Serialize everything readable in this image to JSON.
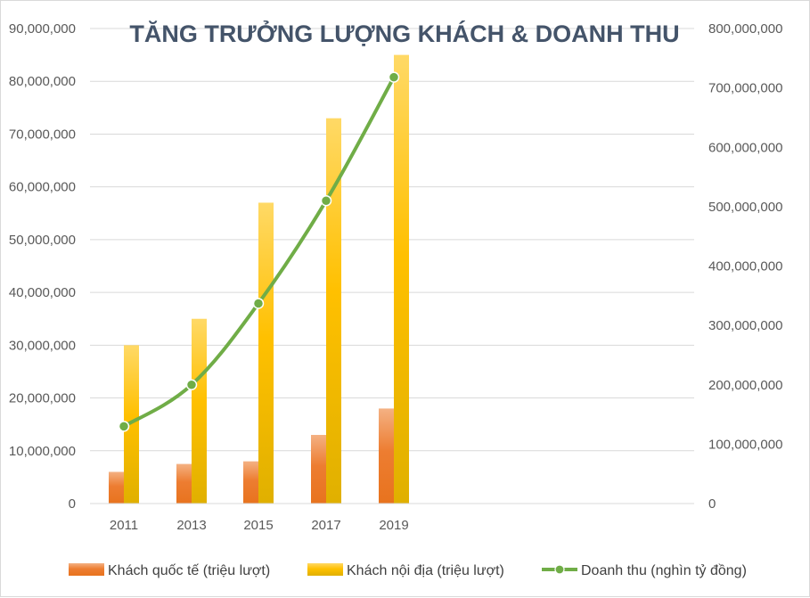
{
  "chart_data": {
    "type": "bar",
    "title": "TĂNG TRƯỞNG LƯỢNG KHÁCH & DOANH THU",
    "xlabel": "",
    "ylabel": "",
    "categories": [
      "2011",
      "2013",
      "2015",
      "2017",
      "2019"
    ],
    "y_left": {
      "min": 0,
      "max": 90000000,
      "step": 10000000,
      "tick_labels": [
        "0",
        "10,000,000",
        "20,000,000",
        "30,000,000",
        "40,000,000",
        "50,000,000",
        "60,000,000",
        "70,000,000",
        "80,000,000",
        "90,000,000"
      ]
    },
    "y_right": {
      "min": 0,
      "max": 800000000,
      "step": 100000000,
      "tick_labels": [
        "0",
        "100,000,000",
        "200,000,000",
        "300,000,000",
        "400,000,000",
        "500,000,000",
        "600,000,000",
        "700,000,000",
        "800,000,000"
      ]
    },
    "grid": true,
    "legend_position": "bottom",
    "series": [
      {
        "name": "Khách quốc tế (triệu lượt)",
        "kind": "bar",
        "axis": "left",
        "color": "#ed7d31",
        "values": [
          6000000,
          7500000,
          8000000,
          13000000,
          18000000
        ]
      },
      {
        "name": "Khách nội địa (triệu lượt)",
        "kind": "bar",
        "axis": "left",
        "color": "#ffc000",
        "values": [
          30000000,
          35000000,
          57000000,
          73000000,
          85000000
        ]
      },
      {
        "name": "Doanh thu (nghìn tỷ đồng)",
        "kind": "line",
        "axis": "right",
        "color": "#70ad47",
        "marker": "circle",
        "values": [
          130000000,
          200000000,
          337000000,
          510000000,
          718000000
        ]
      }
    ]
  }
}
